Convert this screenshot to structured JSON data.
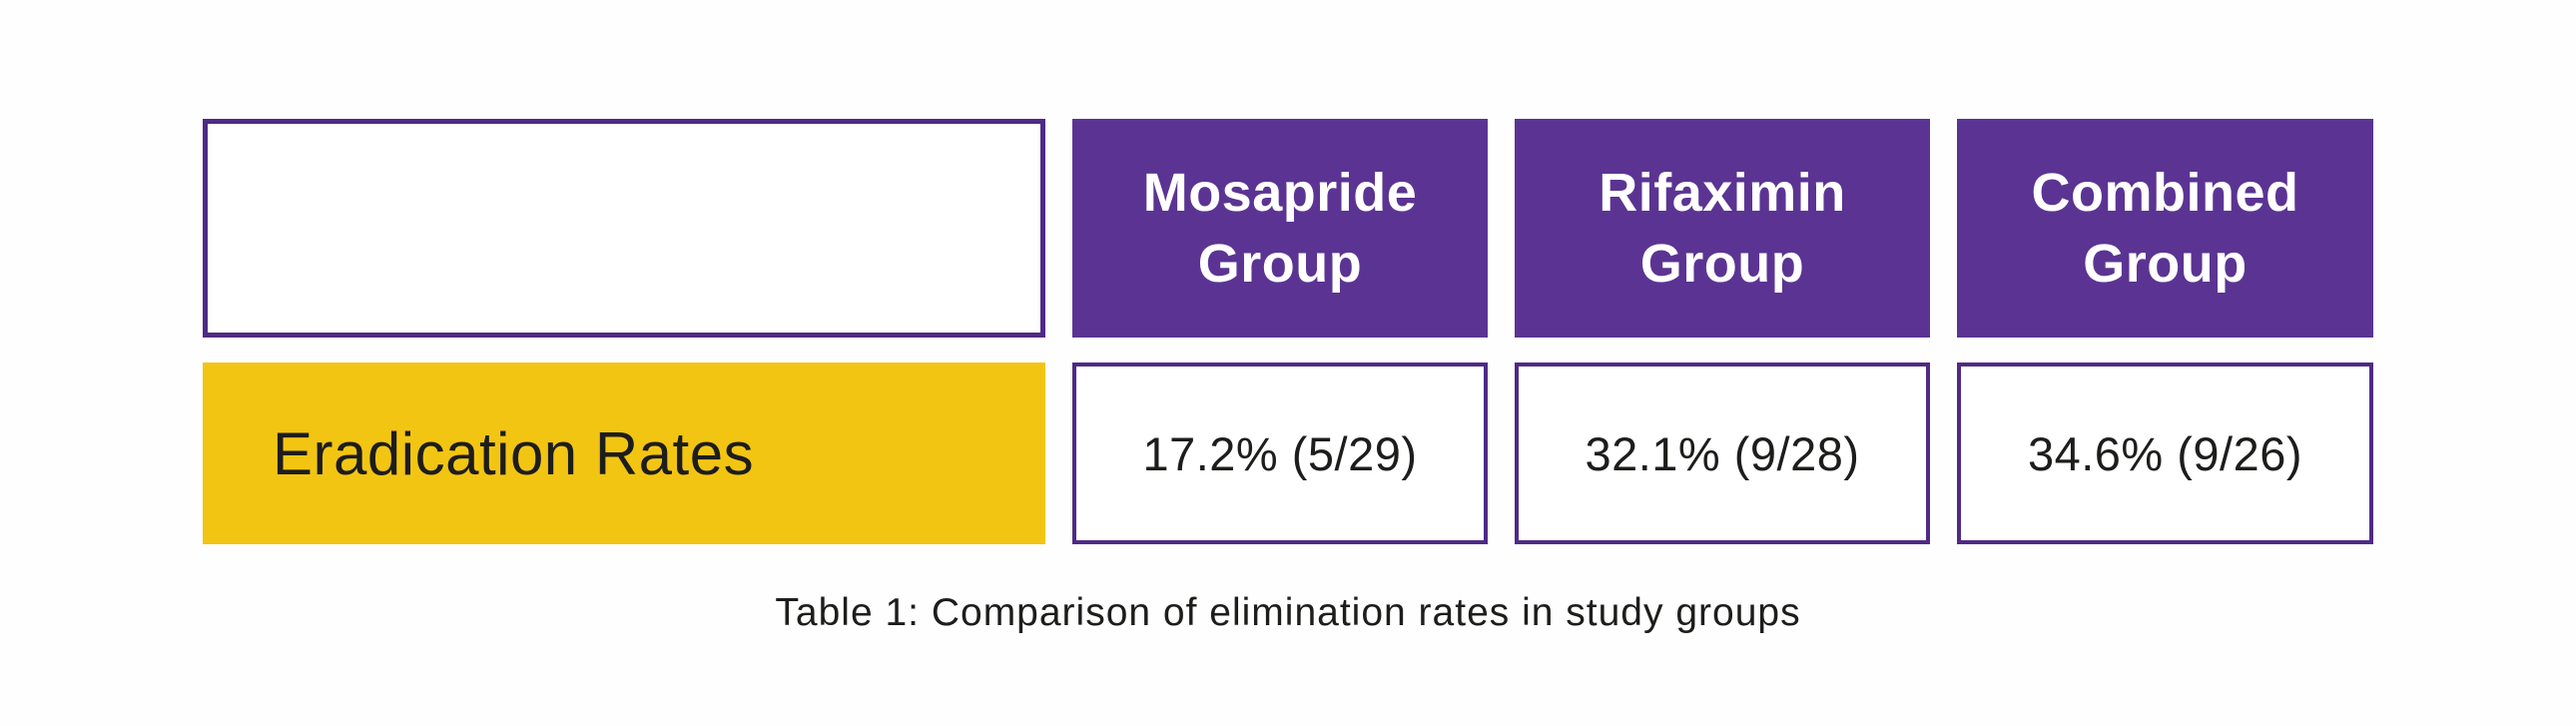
{
  "colors": {
    "header_purple": "#5b3493",
    "border_purple": "#4f2a86",
    "label_yellow": "#f3c513",
    "header_text": "#ffffff",
    "body_text": "#1d1d1b",
    "background": "#fefefe"
  },
  "table": {
    "caption": "Table 1: Comparison of elimination rates in study groups",
    "columns": [
      {
        "label": ""
      },
      {
        "label": "Mosapride Group"
      },
      {
        "label": "Rifaximin Group"
      },
      {
        "label": "Combined Group"
      }
    ],
    "rows": [
      {
        "label": "Eradication Rates",
        "values": [
          "17.2% (5/29)",
          "32.1% (9/28)",
          "34.6% (9/26)"
        ]
      }
    ]
  },
  "chart_data": {
    "type": "table",
    "title": "Table 1: Comparison of elimination rates in study groups",
    "columns": [
      "",
      "Mosapride Group",
      "Rifaximin Group",
      "Combined Group"
    ],
    "rows": [
      {
        "label": "Eradication Rates",
        "values": [
          "17.2% (5/29)",
          "32.1% (9/28)",
          "34.6% (9/26)"
        ],
        "percentages": [
          17.2,
          32.1,
          34.6
        ],
        "fractions": [
          "5/29",
          "9/28",
          "9/26"
        ]
      }
    ],
    "layout_hints": {
      "header_fill": "#5b3493",
      "row_label_fill": "#f3c513",
      "value_cell_border": "#4f2a86",
      "grid": "separated-cells"
    }
  }
}
